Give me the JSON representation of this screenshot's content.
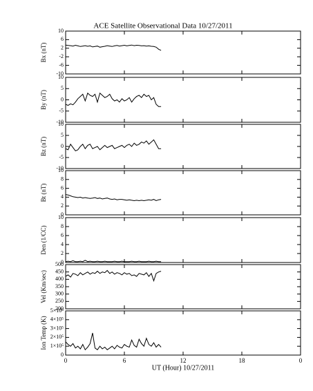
{
  "title": "ACE Satellite Observational Data   10/27/2011",
  "x_label": "UT (Hour)   10/27/2011",
  "chart_data": [
    {
      "type": "line",
      "y_label": "Bx (nT)",
      "ylim": [
        -10,
        10
      ],
      "yticks": [
        -10,
        -6,
        -2,
        2,
        6,
        10
      ],
      "xlim": [
        0,
        24
      ],
      "xticks": [
        0,
        6,
        12,
        18,
        24
      ],
      "color": "#000000",
      "x": [
        0,
        0.25,
        0.5,
        0.75,
        1,
        1.25,
        1.5,
        1.75,
        2,
        2.25,
        2.5,
        2.75,
        3,
        3.25,
        3.5,
        3.75,
        4,
        4.25,
        4.5,
        4.75,
        5,
        5.25,
        5.5,
        5.75,
        6,
        6.25,
        6.5,
        6.75,
        7,
        7.25,
        7.5,
        7.75,
        8,
        8.25,
        8.5,
        8.75,
        9,
        9.25,
        9.5,
        9.75
      ],
      "values": [
        3.5,
        3.3,
        3.2,
        3.0,
        3.4,
        3.1,
        2.8,
        3.0,
        3.2,
        2.9,
        3.1,
        2.6,
        2.8,
        3.0,
        2.5,
        2.7,
        2.9,
        3.2,
        3.0,
        2.8,
        3.1,
        3.3,
        3.0,
        3.2,
        3.4,
        3.1,
        3.3,
        3.5,
        3.2,
        3.4,
        3.3,
        3.1,
        3.2,
        3.0,
        3.1,
        2.9,
        2.8,
        2.5,
        1.5,
        1.0
      ]
    },
    {
      "type": "line",
      "y_label": "By (nT)",
      "ylim": [
        -10,
        10
      ],
      "yticks": [
        -10,
        -5,
        0,
        5,
        10
      ],
      "xlim": [
        0,
        24
      ],
      "xticks": [
        0,
        6,
        12,
        18,
        24
      ],
      "color": "#000000",
      "x": [
        0,
        0.25,
        0.5,
        0.75,
        1,
        1.25,
        1.5,
        1.75,
        2,
        2.25,
        2.5,
        2.75,
        3,
        3.25,
        3.5,
        3.75,
        4,
        4.25,
        4.5,
        4.75,
        5,
        5.25,
        5.5,
        5.75,
        6,
        6.25,
        6.5,
        6.75,
        7,
        7.25,
        7.5,
        7.75,
        8,
        8.25,
        8.5,
        8.75,
        9,
        9.25,
        9.5,
        9.75
      ],
      "values": [
        -2,
        -2.5,
        -1.8,
        -2.2,
        -1,
        0.5,
        1.5,
        2.5,
        -0.5,
        3,
        2,
        1.5,
        2.5,
        -1,
        3,
        2,
        1,
        1.5,
        2.5,
        0.5,
        -0.5,
        0,
        -1,
        0.5,
        -0.5,
        0,
        1,
        -1,
        0.5,
        1.5,
        2,
        1,
        2.5,
        1.5,
        2,
        0,
        1,
        -2,
        -3,
        -3
      ]
    },
    {
      "type": "line",
      "y_label": "Bz (nT)",
      "ylim": [
        -10,
        10
      ],
      "yticks": [
        -10,
        -5,
        0,
        5,
        10
      ],
      "xlim": [
        0,
        24
      ],
      "xticks": [
        0,
        6,
        12,
        18,
        24
      ],
      "color": "#000000",
      "x": [
        0,
        0.25,
        0.5,
        0.75,
        1,
        1.25,
        1.5,
        1.75,
        2,
        2.25,
        2.5,
        2.75,
        3,
        3.25,
        3.5,
        3.75,
        4,
        4.25,
        4.5,
        4.75,
        5,
        5.25,
        5.5,
        5.75,
        6,
        6.25,
        6.5,
        6.75,
        7,
        7.25,
        7.5,
        7.75,
        8,
        8.25,
        8.5,
        8.75,
        9,
        9.25,
        9.5,
        9.75
      ],
      "values": [
        -1,
        -1.5,
        1,
        -0.5,
        -2,
        -1.5,
        0,
        1,
        -1,
        0.5,
        1,
        -1,
        -0.5,
        0,
        -1.5,
        -0.5,
        0.5,
        -0.5,
        0,
        0.5,
        -1,
        -0.5,
        0,
        0.5,
        -0.5,
        0.5,
        1,
        0,
        1.5,
        0.5,
        1,
        2,
        1.5,
        2.5,
        1,
        2,
        3,
        1,
        -1,
        -1
      ]
    },
    {
      "type": "line",
      "y_label": "Bt (nT)",
      "ylim": [
        0,
        10
      ],
      "yticks": [
        0,
        2,
        4,
        6,
        8,
        10
      ],
      "xlim": [
        0,
        24
      ],
      "xticks": [
        0,
        6,
        12,
        18,
        24
      ],
      "color": "#000000",
      "x": [
        0,
        0.25,
        0.5,
        0.75,
        1,
        1.25,
        1.5,
        1.75,
        2,
        2.25,
        2.5,
        2.75,
        3,
        3.25,
        3.5,
        3.75,
        4,
        4.25,
        4.5,
        4.75,
        5,
        5.25,
        5.5,
        5.75,
        6,
        6.25,
        6.5,
        6.75,
        7,
        7.25,
        7.5,
        7.75,
        8,
        8.25,
        8.5,
        8.75,
        9,
        9.25,
        9.5,
        9.75
      ],
      "values": [
        4.6,
        4.5,
        4.3,
        4.1,
        4.0,
        3.9,
        4.0,
        3.8,
        3.9,
        3.8,
        3.7,
        3.8,
        3.9,
        3.7,
        3.8,
        3.6,
        3.7,
        3.8,
        3.6,
        3.5,
        3.6,
        3.4,
        3.5,
        3.5,
        3.4,
        3.3,
        3.4,
        3.3,
        3.2,
        3.3,
        3.2,
        3.3,
        3.2,
        3.3,
        3.4,
        3.3,
        3.5,
        3.2,
        3.4,
        3.5
      ]
    },
    {
      "type": "line",
      "y_label": "Den (1/CC)",
      "ylim": [
        0,
        10
      ],
      "yticks": [
        0,
        2,
        4,
        6,
        8,
        10
      ],
      "xlim": [
        0,
        24
      ],
      "xticks": [
        0,
        6,
        12,
        18,
        24
      ],
      "color": "#000000",
      "x": [
        0,
        0.25,
        0.5,
        0.75,
        1,
        1.25,
        1.5,
        1.75,
        2,
        2.25,
        2.5,
        2.75,
        3,
        3.25,
        3.5,
        3.75,
        4,
        4.25,
        4.5,
        4.75,
        5,
        5.25,
        5.5,
        5.75,
        6,
        6.25,
        6.5,
        6.75,
        7,
        7.25,
        7.5,
        7.75,
        8,
        8.25,
        8.5,
        8.75,
        9,
        9.25,
        9.5,
        9.75
      ],
      "values": [
        0.2,
        0.3,
        0.2,
        0.4,
        0.2,
        0.2,
        0.3,
        0.2,
        0.5,
        0.2,
        0.3,
        0.2,
        0.2,
        0.3,
        0.2,
        0.2,
        0.3,
        0.2,
        0.2,
        0.2,
        0.3,
        0.2,
        0.2,
        0.3,
        0.2,
        0.2,
        0.2,
        0.3,
        0.2,
        0.2,
        0.3,
        0.2,
        0.2,
        0.2,
        0.3,
        0.2,
        0.2,
        0.3,
        0.2,
        0.2
      ]
    },
    {
      "type": "line",
      "y_label": "Vel (Km/sec)",
      "ylim": [
        200,
        500
      ],
      "yticks": [
        200,
        250,
        300,
        350,
        400,
        450,
        500
      ],
      "xlim": [
        0,
        24
      ],
      "xticks": [
        0,
        6,
        12,
        18,
        24
      ],
      "color": "#000000",
      "x": [
        0,
        0.25,
        0.5,
        0.75,
        1,
        1.25,
        1.5,
        1.75,
        2,
        2.25,
        2.5,
        2.75,
        3,
        3.25,
        3.5,
        3.75,
        4,
        4.25,
        4.5,
        4.75,
        5,
        5.25,
        5.5,
        5.75,
        6,
        6.25,
        6.5,
        6.75,
        7,
        7.25,
        7.5,
        7.75,
        8,
        8.25,
        8.5,
        8.75,
        9,
        9.25,
        9.5,
        9.75
      ],
      "values": [
        420,
        430,
        415,
        440,
        435,
        425,
        445,
        430,
        440,
        450,
        435,
        445,
        440,
        455,
        440,
        450,
        445,
        460,
        440,
        450,
        435,
        445,
        440,
        430,
        445,
        435,
        440,
        425,
        430,
        420,
        440,
        435,
        430,
        445,
        420,
        440,
        390,
        440,
        450,
        455
      ]
    },
    {
      "type": "line",
      "y_label": "Ion Temp (K)",
      "ylim": [
        0,
        500000
      ],
      "yticks": [
        0,
        {
          "value": 100000,
          "label": "1×10⁵"
        },
        {
          "value": 200000,
          "label": "2×10⁵"
        },
        {
          "value": 300000,
          "label": "3×10⁵"
        },
        {
          "value": 400000,
          "label": "4×10⁵"
        },
        {
          "value": 500000,
          "label": "5×10⁵"
        }
      ],
      "xlim": [
        0,
        24
      ],
      "xticks": [
        0,
        6,
        12,
        18,
        {
          "value": 24,
          "label": "0"
        }
      ],
      "color": "#000000",
      "x": [
        0,
        0.25,
        0.5,
        0.75,
        1,
        1.25,
        1.5,
        1.75,
        2,
        2.25,
        2.5,
        2.75,
        3,
        3.25,
        3.5,
        3.75,
        4,
        4.25,
        4.5,
        4.75,
        5,
        5.25,
        5.5,
        5.75,
        6,
        6.25,
        6.5,
        6.75,
        7,
        7.25,
        7.5,
        7.75,
        8,
        8.25,
        8.5,
        8.75,
        9,
        9.25,
        9.5,
        9.75
      ],
      "values": [
        150000,
        120000,
        100000,
        130000,
        80000,
        100000,
        70000,
        120000,
        60000,
        90000,
        130000,
        250000,
        80000,
        60000,
        100000,
        70000,
        90000,
        60000,
        80000,
        100000,
        70000,
        110000,
        90000,
        80000,
        120000,
        100000,
        90000,
        170000,
        110000,
        90000,
        180000,
        130000,
        100000,
        190000,
        120000,
        100000,
        140000,
        90000,
        120000,
        90000
      ]
    }
  ]
}
